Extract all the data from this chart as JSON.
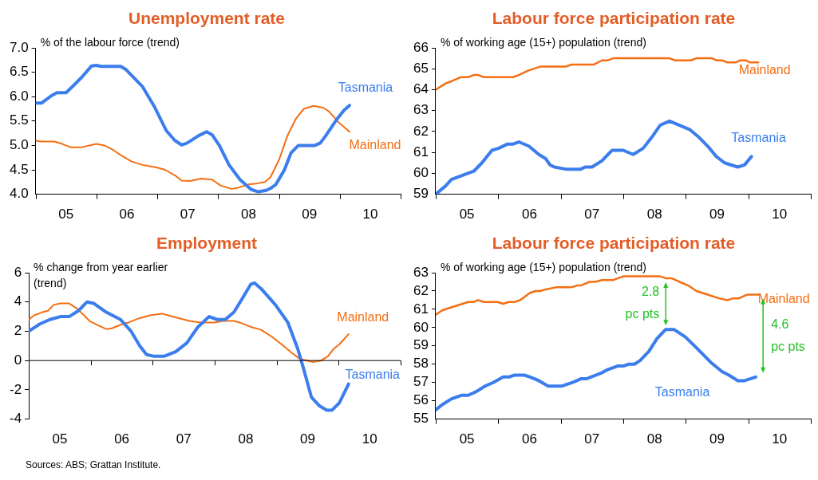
{
  "chart_data": [
    {
      "type": "line",
      "title": "Unemployment rate",
      "ylabel": "% of the labour force (trend)",
      "xlim": [
        4.5,
        10.5
      ],
      "xticks": [
        {
          "value": 5,
          "label": "05"
        },
        {
          "value": 6,
          "label": "06"
        },
        {
          "value": 7,
          "label": "07"
        },
        {
          "value": 8,
          "label": "08"
        },
        {
          "value": 9,
          "label": "09"
        },
        {
          "value": 10,
          "label": "10"
        }
      ],
      "ylim": [
        4,
        7
      ],
      "yticks": [
        {
          "value": 4,
          "label": "4.0"
        },
        {
          "value": 4.5,
          "label": "4.5"
        },
        {
          "value": 5,
          "label": "5.0"
        },
        {
          "value": 5.5,
          "label": "5.5"
        },
        {
          "value": 6,
          "label": "6.0"
        },
        {
          "value": 6.5,
          "label": "6.5"
        },
        {
          "value": 7,
          "label": "7.0"
        }
      ],
      "grid": false,
      "legend": false,
      "marker": "none",
      "line_style": "solid",
      "series": [
        {
          "name": "Tasmania",
          "color": "#3b7ded",
          "x": [
            4.5,
            4.6,
            4.76,
            4.85,
            5.0,
            5.1,
            5.26,
            5.42,
            5.5,
            5.58,
            5.9,
            5.99,
            6.26,
            6.45,
            6.65,
            6.79,
            6.9,
            6.99,
            7.18,
            7.31,
            7.4,
            7.52,
            7.68,
            7.86,
            8.04,
            8.16,
            8.29,
            8.36,
            8.45,
            8.59,
            8.7,
            8.82,
            8.96,
            9.09,
            9.18,
            9.27,
            9.46,
            9.57,
            9.66
          ],
          "values": [
            5.87,
            5.87,
            6.02,
            6.08,
            6.08,
            6.2,
            6.4,
            6.63,
            6.64,
            6.62,
            6.62,
            6.55,
            6.2,
            5.8,
            5.3,
            5.1,
            5.01,
            5.05,
            5.2,
            5.28,
            5.22,
            5.0,
            4.6,
            4.3,
            4.1,
            4.05,
            4.08,
            4.12,
            4.2,
            4.5,
            4.85,
            5.0,
            5.0,
            5.0,
            5.05,
            5.2,
            5.55,
            5.72,
            5.82
          ]
        },
        {
          "name": "Mainland",
          "color": "#f46e12",
          "x": [
            4.5,
            4.58,
            4.81,
            4.94,
            5.08,
            5.26,
            5.38,
            5.5,
            5.63,
            5.76,
            5.9,
            6.08,
            6.26,
            6.49,
            6.63,
            6.81,
            6.9,
            7.04,
            7.22,
            7.4,
            7.54,
            7.72,
            7.82,
            8.0,
            8.13,
            8.27,
            8.36,
            8.5,
            8.64,
            8.78,
            8.91,
            9.07,
            9.23,
            9.32,
            9.5,
            9.66
          ],
          "values": [
            5.1,
            5.08,
            5.08,
            5.03,
            4.96,
            4.96,
            5.0,
            5.03,
            5.0,
            4.92,
            4.8,
            4.67,
            4.6,
            4.55,
            4.5,
            4.37,
            4.28,
            4.27,
            4.32,
            4.3,
            4.18,
            4.11,
            4.13,
            4.2,
            4.22,
            4.25,
            4.35,
            4.7,
            5.2,
            5.55,
            5.75,
            5.81,
            5.77,
            5.7,
            5.45,
            5.28
          ]
        }
      ]
    },
    {
      "type": "line",
      "title": "Labour force participation rate",
      "ylabel": "% of working age (15+) population (trend)",
      "xlim": [
        4.5,
        10.5
      ],
      "xticks": [
        {
          "value": 5,
          "label": "05"
        },
        {
          "value": 6,
          "label": "06"
        },
        {
          "value": 7,
          "label": "07"
        },
        {
          "value": 8,
          "label": "08"
        },
        {
          "value": 9,
          "label": "09"
        },
        {
          "value": 10,
          "label": "10"
        }
      ],
      "ylim": [
        59,
        66
      ],
      "yticks": [
        59,
        60,
        61,
        62,
        63,
        64,
        65,
        66
      ],
      "grid": false,
      "legend": false,
      "marker": "none",
      "line_style": "solid",
      "series": [
        {
          "name": "Tasmania",
          "color": "#3b7ded",
          "x": [
            4.5,
            4.66,
            4.75,
            4.93,
            5.11,
            5.24,
            5.4,
            5.51,
            5.65,
            5.74,
            5.83,
            5.99,
            6.15,
            6.26,
            6.33,
            6.4,
            6.58,
            6.82,
            6.89,
            7.0,
            7.16,
            7.32,
            7.5,
            7.66,
            7.82,
            7.95,
            8.09,
            8.24,
            8.4,
            8.56,
            8.72,
            8.85,
            8.99,
            9.12,
            9.33,
            9.44,
            9.55
          ],
          "values": [
            59.0,
            59.4,
            59.7,
            59.9,
            60.1,
            60.5,
            61.1,
            61.2,
            61.4,
            61.4,
            61.5,
            61.3,
            60.9,
            60.7,
            60.4,
            60.3,
            60.2,
            60.2,
            60.3,
            60.3,
            60.6,
            61.1,
            61.1,
            60.9,
            61.2,
            61.7,
            62.3,
            62.5,
            62.3,
            62.1,
            61.7,
            61.3,
            60.8,
            60.5,
            60.3,
            60.4,
            60.8
          ]
        },
        {
          "name": "Mainland",
          "color": "#f46e12",
          "x": [
            4.5,
            4.66,
            4.75,
            4.91,
            5.02,
            5.11,
            5.18,
            5.27,
            5.74,
            5.83,
            5.97,
            6.17,
            6.58,
            6.67,
            7.03,
            7.16,
            7.25,
            7.34,
            8.24,
            8.33,
            8.58,
            8.67,
            8.92,
            8.99,
            9.08,
            9.17,
            9.3,
            9.37,
            9.46,
            9.53,
            9.66
          ],
          "values": [
            64.0,
            64.3,
            64.4,
            64.6,
            64.6,
            64.7,
            64.7,
            64.6,
            64.6,
            64.7,
            64.9,
            65.1,
            65.1,
            65.2,
            65.2,
            65.4,
            65.4,
            65.5,
            65.5,
            65.4,
            65.4,
            65.5,
            65.5,
            65.4,
            65.4,
            65.3,
            65.3,
            65.4,
            65.4,
            65.3,
            65.3
          ]
        }
      ]
    },
    {
      "type": "line",
      "title": "Employment",
      "ylabel": "% change from year earlier (trend)",
      "xlim": [
        4.5,
        10.5
      ],
      "xticks": [
        {
          "value": 5,
          "label": "05"
        },
        {
          "value": 6,
          "label": "06"
        },
        {
          "value": 7,
          "label": "07"
        },
        {
          "value": 8,
          "label": "08"
        },
        {
          "value": 9,
          "label": "09"
        },
        {
          "value": 10,
          "label": "10"
        }
      ],
      "ylim": [
        -4,
        6
      ],
      "yticks": [
        -4,
        -2,
        0,
        2,
        4,
        6
      ],
      "grid": false,
      "legend": false,
      "marker": "none",
      "line_style": "solid",
      "ref_lines": [
        {
          "axis": "y",
          "value": 0,
          "color": "#000000"
        }
      ],
      "annotations": [
        "Sources: ABS; Grattan Institute."
      ],
      "series": [
        {
          "name": "Tasmania",
          "color": "#3b7ded",
          "x": [
            4.5,
            4.68,
            4.84,
            5.01,
            5.15,
            5.3,
            5.44,
            5.55,
            5.75,
            5.98,
            6.15,
            6.29,
            6.4,
            6.51,
            6.69,
            6.87,
            7.05,
            7.23,
            7.41,
            7.54,
            7.67,
            7.81,
            7.94,
            8.08,
            8.14,
            8.25,
            8.48,
            8.68,
            8.84,
            8.93,
            9.06,
            9.19,
            9.31,
            9.39,
            9.51,
            9.66
          ],
          "values": [
            2.0,
            2.5,
            2.8,
            3.0,
            3.0,
            3.4,
            4.0,
            3.9,
            3.3,
            2.8,
            2.0,
            1.0,
            0.4,
            0.3,
            0.3,
            0.6,
            1.2,
            2.3,
            3.0,
            2.8,
            2.8,
            3.3,
            4.2,
            5.2,
            5.3,
            4.9,
            3.8,
            2.6,
            0.8,
            -0.5,
            -2.5,
            -3.1,
            -3.4,
            -3.4,
            -2.9,
            -1.6
          ]
        },
        {
          "name": "Mainland",
          "color": "#f46e12",
          "x": [
            4.5,
            4.59,
            4.72,
            4.81,
            4.9,
            5.01,
            5.15,
            5.26,
            5.39,
            5.48,
            5.62,
            5.75,
            5.84,
            6.02,
            6.11,
            6.29,
            6.47,
            6.65,
            6.82,
            7.09,
            7.27,
            7.5,
            7.63,
            7.81,
            7.9,
            8.08,
            8.25,
            8.43,
            8.61,
            8.75,
            8.88,
            8.99,
            9.08,
            9.22,
            9.33,
            9.42,
            9.51,
            9.66
          ],
          "values": [
            2.8,
            3.1,
            3.3,
            3.4,
            3.8,
            3.9,
            3.9,
            3.6,
            3.1,
            2.7,
            2.4,
            2.15,
            2.2,
            2.5,
            2.6,
            2.9,
            3.1,
            3.2,
            3.0,
            2.7,
            2.6,
            2.6,
            2.7,
            2.7,
            2.6,
            2.3,
            2.1,
            1.6,
            1.0,
            0.5,
            0.1,
            0.0,
            -0.1,
            0.0,
            0.3,
            0.8,
            1.1,
            1.8
          ]
        }
      ]
    },
    {
      "type": "line",
      "title": "Labour force participation rate",
      "ylabel": "% of working age (15+) population (trend)",
      "xlim": [
        4.5,
        10.5
      ],
      "xticks": [
        {
          "value": 5,
          "label": "05"
        },
        {
          "value": 6,
          "label": "06"
        },
        {
          "value": 7,
          "label": "07"
        },
        {
          "value": 8,
          "label": "08"
        },
        {
          "value": 9,
          "label": "09"
        },
        {
          "value": 10,
          "label": "10"
        }
      ],
      "ylim": [
        55,
        63
      ],
      "yticks": [
        55,
        56,
        57,
        58,
        59,
        60,
        61,
        62,
        63
      ],
      "grid": false,
      "legend": false,
      "marker": "none",
      "line_style": "solid",
      "annotations": [
        {
          "text": "2.8 pc pts",
          "x": 8.18,
          "y": 62.7
        },
        {
          "text": "4.6 pc pts",
          "x": 9.66,
          "y": 61.8
        }
      ],
      "series": [
        {
          "name": "Tasmania",
          "color": "#3b7ded",
          "x": [
            4.5,
            4.61,
            4.75,
            4.91,
            5.02,
            5.15,
            5.29,
            5.42,
            5.58,
            5.67,
            5.76,
            5.92,
            6.01,
            6.15,
            6.3,
            6.51,
            6.69,
            6.82,
            6.91,
            7.14,
            7.25,
            7.41,
            7.5,
            7.59,
            7.68,
            7.77,
            7.91,
            8.04,
            8.18,
            8.31,
            8.49,
            8.67,
            8.9,
            9.08,
            9.19,
            9.33,
            9.44,
            9.62
          ],
          "values": [
            55.5,
            55.8,
            56.1,
            56.3,
            56.3,
            56.5,
            56.8,
            57.0,
            57.3,
            57.3,
            57.4,
            57.4,
            57.3,
            57.1,
            56.8,
            56.8,
            57.0,
            57.2,
            57.2,
            57.5,
            57.7,
            57.9,
            57.9,
            58.0,
            58.0,
            58.2,
            58.7,
            59.4,
            59.9,
            59.9,
            59.5,
            58.9,
            58.1,
            57.6,
            57.4,
            57.1,
            57.1,
            57.3
          ]
        },
        {
          "name": "Mainland",
          "color": "#f46e12",
          "x": [
            4.5,
            4.61,
            4.79,
            4.93,
            5.02,
            5.11,
            5.18,
            5.27,
            5.49,
            5.58,
            5.67,
            5.76,
            5.85,
            6.01,
            6.1,
            6.17,
            6.28,
            6.42,
            6.67,
            6.76,
            6.82,
            6.96,
            7.05,
            7.16,
            7.34,
            7.5,
            8.09,
            8.18,
            8.27,
            8.4,
            8.54,
            8.67,
            8.85,
            9.03,
            9.17,
            9.26,
            9.35,
            9.48,
            9.66
          ],
          "values": [
            60.7,
            60.95,
            61.15,
            61.3,
            61.4,
            61.4,
            61.5,
            61.4,
            61.4,
            61.3,
            61.4,
            61.4,
            61.5,
            61.9,
            62.0,
            62.0,
            62.1,
            62.2,
            62.2,
            62.3,
            62.3,
            62.5,
            62.5,
            62.6,
            62.6,
            62.8,
            62.8,
            62.7,
            62.7,
            62.5,
            62.3,
            62.0,
            61.8,
            61.6,
            61.5,
            61.6,
            61.6,
            61.8,
            61.8
          ]
        }
      ]
    }
  ]
}
